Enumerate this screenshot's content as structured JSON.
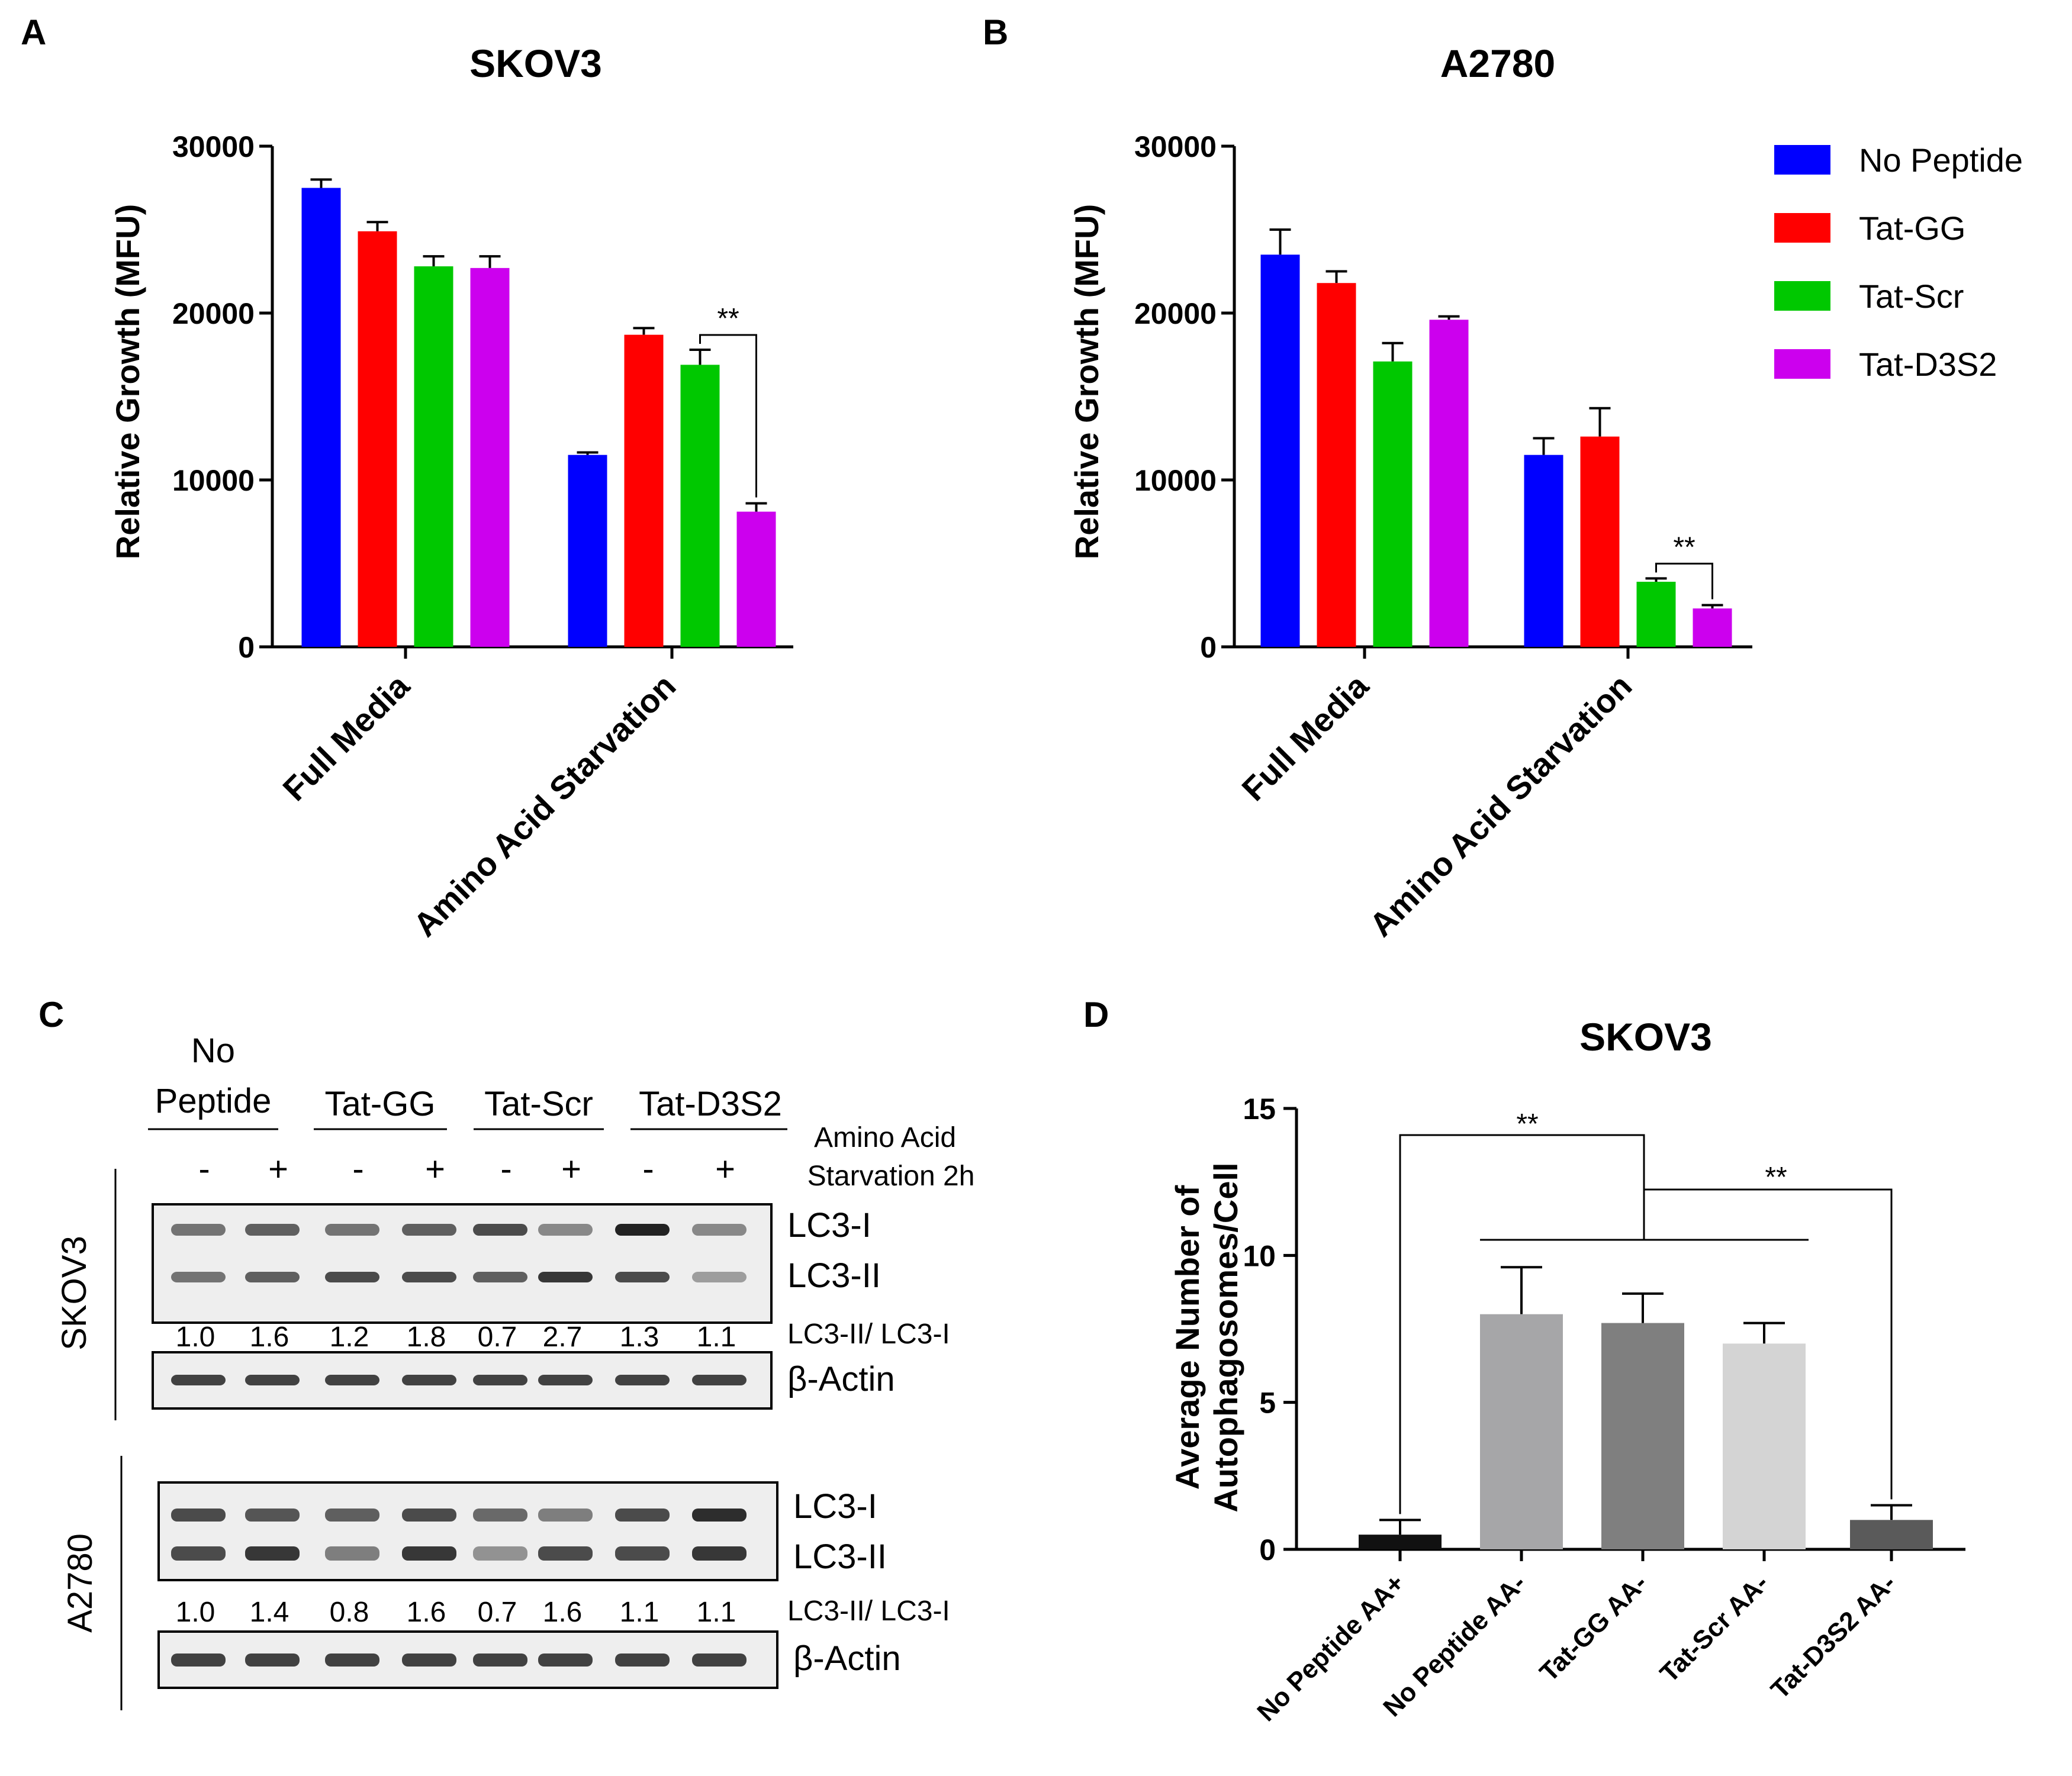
{
  "panels": {
    "A": {
      "letter": "A"
    },
    "B": {
      "letter": "B"
    },
    "C": {
      "letter": "C"
    },
    "D": {
      "letter": "D"
    }
  },
  "legend": {
    "items": [
      {
        "label": "No Peptide",
        "color": "#0000ff"
      },
      {
        "label": "Tat-GG",
        "color": "#ff0000"
      },
      {
        "label": "Tat-Scr",
        "color": "#00c800"
      },
      {
        "label": "Tat-D3S2",
        "color": "#cc00ee"
      }
    ]
  },
  "chart_data": [
    {
      "id": "A",
      "type": "bar",
      "title": "SKOV3",
      "ylabel": "Relative Growth (MFU)",
      "ylim": [
        0,
        30000
      ],
      "yticks": [
        "0",
        "10000",
        "20000",
        "30000"
      ],
      "categories": [
        "Full Media",
        "Amino Acid Starvation"
      ],
      "series": [
        {
          "name": "No Peptide",
          "values": [
            27500,
            11500
          ],
          "errors": [
            500,
            150
          ]
        },
        {
          "name": "Tat-GG",
          "values": [
            24900,
            18700
          ],
          "errors": [
            550,
            400
          ]
        },
        {
          "name": "Tat-Scr",
          "values": [
            22800,
            16900
          ],
          "errors": [
            600,
            900
          ]
        },
        {
          "name": "Tat-D3S2",
          "values": [
            22700,
            8100
          ],
          "errors": [
            700,
            500
          ]
        }
      ],
      "significance": [
        {
          "label": "**",
          "category": 1,
          "from_series": 2,
          "to_series": 3
        }
      ]
    },
    {
      "id": "B",
      "type": "bar",
      "title": "A2780",
      "ylabel": "Relative Growth  (MFU)",
      "ylim": [
        0,
        30000
      ],
      "yticks": [
        "0",
        "10000",
        "20000",
        "30000"
      ],
      "categories": [
        "Full Media",
        "Amino Acid Starvation"
      ],
      "series": [
        {
          "name": "No Peptide",
          "values": [
            23500,
            11500
          ],
          "errors": [
            1500,
            1000
          ]
        },
        {
          "name": "Tat-GG",
          "values": [
            21800,
            12600
          ],
          "errors": [
            700,
            1700
          ]
        },
        {
          "name": "Tat-Scr",
          "values": [
            17100,
            3900
          ],
          "errors": [
            1100,
            200
          ]
        },
        {
          "name": "Tat-D3S2",
          "values": [
            19600,
            2300
          ],
          "errors": [
            200,
            200
          ]
        }
      ],
      "significance": [
        {
          "label": "**",
          "category": 1,
          "from_series": 2,
          "to_series": 3
        }
      ]
    },
    {
      "id": "D",
      "type": "bar",
      "title": "SKOV3",
      "ylabel_lines": [
        "Average Number of",
        "Autophagosomes/Cell"
      ],
      "ylim": [
        0,
        15
      ],
      "yticks": [
        "0",
        "5",
        "10",
        "15"
      ],
      "categories": [
        "No Peptide AA+",
        "No Peptide AA-",
        "Tat-GG AA-",
        "Tat-Scr AA-",
        "Tat-D3S2 AA-"
      ],
      "values": [
        0.5,
        8.0,
        7.7,
        7.0,
        1.0
      ],
      "errors": [
        0.5,
        1.6,
        1.0,
        0.7,
        0.5
      ],
      "colors": [
        "#111111",
        "#a6a6a8",
        "#7f7f7f",
        "#d4d4d4",
        "#5a5a5a"
      ],
      "significance": [
        {
          "label": "**",
          "between": "No Peptide AA+ vs AA- groups"
        },
        {
          "label": "**",
          "between": "AA- groups vs Tat-D3S2 AA-"
        }
      ]
    }
  ],
  "western": {
    "groups": [
      "No\nPeptide",
      "Tat-GG",
      "Tat-Scr",
      "Tat-D3S2"
    ],
    "group_line1": "No",
    "group_line2": "Peptide",
    "group_labels": [
      "Tat-GG",
      "Tat-Scr",
      "Tat-D3S2"
    ],
    "starvation_line1": "Amino Acid",
    "starvation_line2": "Starvation  2h",
    "signs": [
      "-",
      "+",
      "-",
      "+",
      "-",
      "+",
      "-",
      "+"
    ],
    "cell_lines": [
      "SKOV3",
      "A2780"
    ],
    "band_labels": {
      "lc3i": "LC3-I",
      "lc3ii": "LC3-II",
      "ratio": "LC3-II/ LC3-I",
      "actin": "β-Actin"
    },
    "ratios": {
      "SKOV3": [
        "1.0",
        "1.6",
        "1.2",
        "1.8",
        "0.7",
        "2.7",
        "1.3",
        "1.1"
      ],
      "A2780": [
        "1.0",
        "1.4",
        "0.8",
        "1.6",
        "0.7",
        "1.6",
        "1.1",
        "1.1"
      ]
    },
    "intensity": {
      "SKOV3_lc3i": [
        0.6,
        0.7,
        0.6,
        0.7,
        0.8,
        0.5,
        1.0,
        0.5
      ],
      "SKOV3_lc3ii": [
        0.6,
        0.7,
        0.8,
        0.8,
        0.7,
        0.9,
        0.8,
        0.4
      ],
      "A2780_lc3i": [
        0.8,
        0.75,
        0.7,
        0.8,
        0.65,
        0.55,
        0.8,
        0.95
      ],
      "A2780_lc3ii": [
        0.8,
        0.9,
        0.55,
        0.9,
        0.45,
        0.8,
        0.8,
        0.9
      ]
    }
  }
}
